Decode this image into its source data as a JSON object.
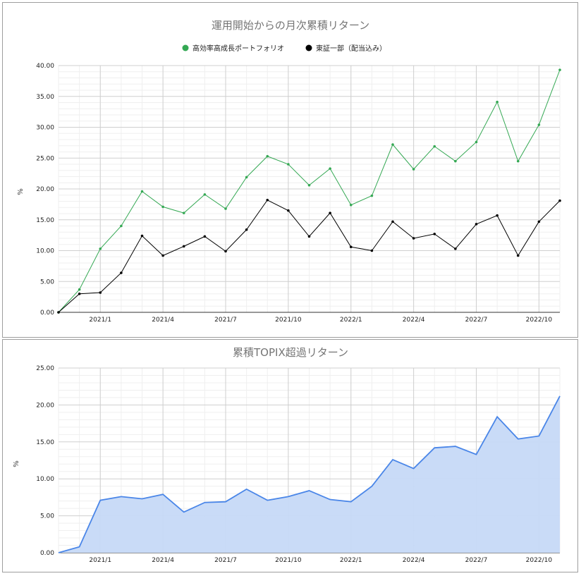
{
  "chart_data": [
    {
      "type": "line",
      "title": "運用開始からの月次累積リターン",
      "ylabel": "%",
      "xlabel": "",
      "ylim": [
        0,
        40
      ],
      "yticks": [
        "0.00",
        "5.00",
        "10.00",
        "15.00",
        "20.00",
        "25.00",
        "30.00",
        "35.00",
        "40.00"
      ],
      "xticks": [
        {
          "label": "2021/1",
          "index": 2
        },
        {
          "label": "2021/4",
          "index": 5
        },
        {
          "label": "2021/7",
          "index": 8
        },
        {
          "label": "2021/10",
          "index": 11
        },
        {
          "label": "2022/1",
          "index": 14
        },
        {
          "label": "2022/4",
          "index": 17
        },
        {
          "label": "2022/7",
          "index": 20
        },
        {
          "label": "2022/10",
          "index": 23
        }
      ],
      "x": [
        "2020/11",
        "2020/12",
        "2021/1",
        "2021/2",
        "2021/3",
        "2021/4",
        "2021/5",
        "2021/6",
        "2021/7",
        "2021/8",
        "2021/9",
        "2021/10",
        "2021/11",
        "2021/12",
        "2022/1",
        "2022/2",
        "2022/3",
        "2022/4",
        "2022/5",
        "2022/6",
        "2022/7",
        "2022/8",
        "2022/9",
        "2022/10",
        "2022/11"
      ],
      "legend_position": "top",
      "grid": true,
      "series": [
        {
          "name": "高効率高成長ポートフォリオ",
          "color": "#34a853",
          "values": [
            0.0,
            3.7,
            10.3,
            14.0,
            19.6,
            17.1,
            16.1,
            19.1,
            16.8,
            21.9,
            25.3,
            24.0,
            20.6,
            23.3,
            17.4,
            18.9,
            27.2,
            23.2,
            26.9,
            24.5,
            27.6,
            34.1,
            24.5,
            30.4,
            39.3
          ]
        },
        {
          "name": "東証一部（配当込み）",
          "color": "#000000",
          "values": [
            0.0,
            3.0,
            3.2,
            6.4,
            12.4,
            9.2,
            10.7,
            12.3,
            9.9,
            13.4,
            18.2,
            16.5,
            12.3,
            16.1,
            10.6,
            10.0,
            14.7,
            12.0,
            12.7,
            10.3,
            14.3,
            15.7,
            9.2,
            14.7,
            18.1
          ]
        }
      ]
    },
    {
      "type": "area",
      "title": "累積TOPIX超過リターン",
      "ylabel": "%",
      "xlabel": "",
      "ylim": [
        0,
        25
      ],
      "yticks": [
        "0.00",
        "5.00",
        "10.00",
        "15.00",
        "20.00",
        "25.00"
      ],
      "xticks": [
        {
          "label": "2021/1",
          "index": 2
        },
        {
          "label": "2021/4",
          "index": 5
        },
        {
          "label": "2021/7",
          "index": 8
        },
        {
          "label": "2021/10",
          "index": 11
        },
        {
          "label": "2022/1",
          "index": 14
        },
        {
          "label": "2022/4",
          "index": 17
        },
        {
          "label": "2022/7",
          "index": 20
        },
        {
          "label": "2022/10",
          "index": 23
        }
      ],
      "x": [
        "2020/11",
        "2020/12",
        "2021/1",
        "2021/2",
        "2021/3",
        "2021/4",
        "2021/5",
        "2021/6",
        "2021/7",
        "2021/8",
        "2021/9",
        "2021/10",
        "2021/11",
        "2021/12",
        "2022/1",
        "2022/2",
        "2022/3",
        "2022/4",
        "2022/5",
        "2022/6",
        "2022/7",
        "2022/8",
        "2022/9",
        "2022/10",
        "2022/11"
      ],
      "grid": true,
      "series": [
        {
          "color": "#4a86e8",
          "fill": "#c6d9f7",
          "values": [
            0.0,
            0.8,
            7.1,
            7.6,
            7.3,
            7.9,
            5.5,
            6.8,
            6.9,
            8.6,
            7.1,
            7.6,
            8.4,
            7.2,
            6.9,
            9.0,
            12.6,
            11.4,
            14.2,
            14.4,
            13.3,
            18.4,
            15.4,
            15.8,
            21.2
          ]
        }
      ]
    }
  ]
}
